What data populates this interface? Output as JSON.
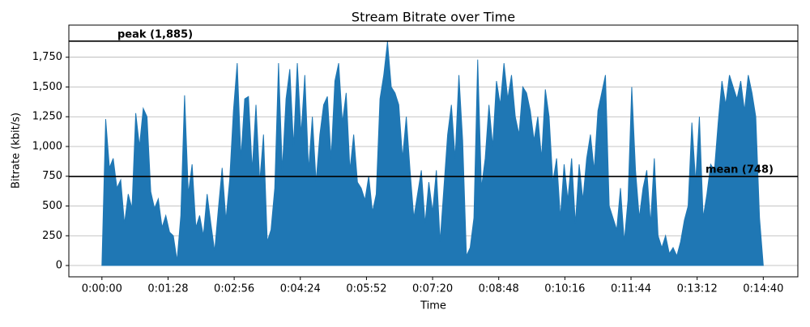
{
  "chart_data": {
    "type": "area",
    "title": "Stream Bitrate over Time",
    "xlabel": "Time",
    "ylabel": "Bitrate (kbit/s)",
    "xlim": [
      -44,
      926
    ],
    "ylim": [
      -95,
      2020
    ],
    "grid": true,
    "xticks": [
      {
        "value": 0,
        "label": "0:00:00"
      },
      {
        "value": 88,
        "label": "0:01:28"
      },
      {
        "value": 176,
        "label": "0:02:56"
      },
      {
        "value": 264,
        "label": "0:04:24"
      },
      {
        "value": 352,
        "label": "0:05:52"
      },
      {
        "value": 440,
        "label": "0:07:20"
      },
      {
        "value": 528,
        "label": "0:08:48"
      },
      {
        "value": 616,
        "label": "0:10:16"
      },
      {
        "value": 704,
        "label": "0:11:44"
      },
      {
        "value": 792,
        "label": "0:13:12"
      },
      {
        "value": 880,
        "label": "0:14:40"
      }
    ],
    "yticks": [
      0,
      250,
      500,
      750,
      {
        "value": 1000,
        "label": "1,000"
      },
      {
        "value": 1250,
        "label": "1,250"
      },
      {
        "value": 1500,
        "label": "1,500"
      },
      {
        "value": 1750,
        "label": "1,750"
      }
    ],
    "hlines": [
      {
        "value": 1885,
        "label": "peak (1,885)"
      },
      {
        "value": 748,
        "label": "mean (748)"
      }
    ],
    "x": [
      0,
      5,
      10,
      15,
      20,
      25,
      30,
      35,
      40,
      45,
      50,
      55,
      60,
      65,
      70,
      75,
      80,
      85,
      90,
      95,
      100,
      105,
      110,
      115,
      120,
      125,
      130,
      135,
      140,
      145,
      150,
      155,
      160,
      165,
      170,
      175,
      180,
      185,
      190,
      195,
      200,
      205,
      210,
      215,
      220,
      225,
      230,
      235,
      240,
      245,
      250,
      255,
      260,
      265,
      270,
      275,
      280,
      285,
      290,
      295,
      300,
      305,
      310,
      315,
      320,
      325,
      330,
      335,
      340,
      345,
      350,
      355,
      360,
      365,
      370,
      375,
      380,
      385,
      390,
      395,
      400,
      405,
      410,
      415,
      420,
      425,
      430,
      435,
      440,
      445,
      450,
      455,
      460,
      465,
      470,
      475,
      480,
      485,
      490,
      495,
      500,
      505,
      510,
      515,
      520,
      525,
      530,
      535,
      540,
      545,
      550,
      555,
      560,
      565,
      570,
      575,
      580,
      585,
      590,
      595,
      600,
      605,
      610,
      615,
      620,
      625,
      630,
      635,
      640,
      645,
      650,
      655,
      660,
      665,
      670,
      675,
      680,
      685,
      690,
      695,
      700,
      705,
      710,
      715,
      720,
      725,
      730,
      735,
      740,
      745,
      750,
      755,
      760,
      765,
      770,
      775,
      780,
      785,
      790,
      795,
      800,
      805,
      810,
      815,
      820,
      825,
      830,
      835,
      840,
      845,
      850,
      855,
      860,
      865,
      870,
      875,
      880
    ],
    "series": [
      {
        "color": "#1f77b4",
        "values": [
          0,
          1230,
          820,
          900,
          650,
          720,
          350,
          600,
          480,
          1280,
          1000,
          1320,
          1250,
          620,
          480,
          560,
          320,
          420,
          280,
          250,
          40,
          420,
          1430,
          600,
          850,
          320,
          420,
          250,
          600,
          350,
          120,
          480,
          820,
          380,
          720,
          1300,
          1700,
          900,
          1400,
          1420,
          800,
          1350,
          700,
          1100,
          200,
          300,
          650,
          1700,
          800,
          1400,
          1650,
          1000,
          1700,
          1100,
          1600,
          800,
          1250,
          700,
          1100,
          1350,
          1420,
          900,
          1550,
          1700,
          1200,
          1450,
          800,
          1100,
          700,
          650,
          550,
          750,
          450,
          600,
          1400,
          1600,
          1880,
          1500,
          1450,
          1350,
          900,
          1250,
          800,
          400,
          600,
          800,
          350,
          700,
          450,
          800,
          200,
          650,
          1100,
          1350,
          900,
          1600,
          1050,
          80,
          150,
          400,
          1730,
          650,
          900,
          1350,
          1000,
          1550,
          1350,
          1700,
          1400,
          1600,
          1250,
          1100,
          1500,
          1450,
          1300,
          1050,
          1250,
          900,
          1480,
          1250,
          700,
          900,
          400,
          850,
          550,
          900,
          350,
          850,
          550,
          900,
          1100,
          800,
          1300,
          1450,
          1600,
          500,
          400,
          300,
          650,
          200,
          550,
          1500,
          800,
          400,
          650,
          800,
          350,
          900,
          250,
          150,
          250,
          100,
          150,
          80,
          200,
          380,
          500,
          1200,
          700,
          1250,
          400,
          600,
          850,
          800,
          1200,
          1550,
          1350,
          1600,
          1500,
          1400,
          1550,
          1300,
          1600,
          1450,
          1250,
          400,
          0
        ]
      }
    ]
  }
}
